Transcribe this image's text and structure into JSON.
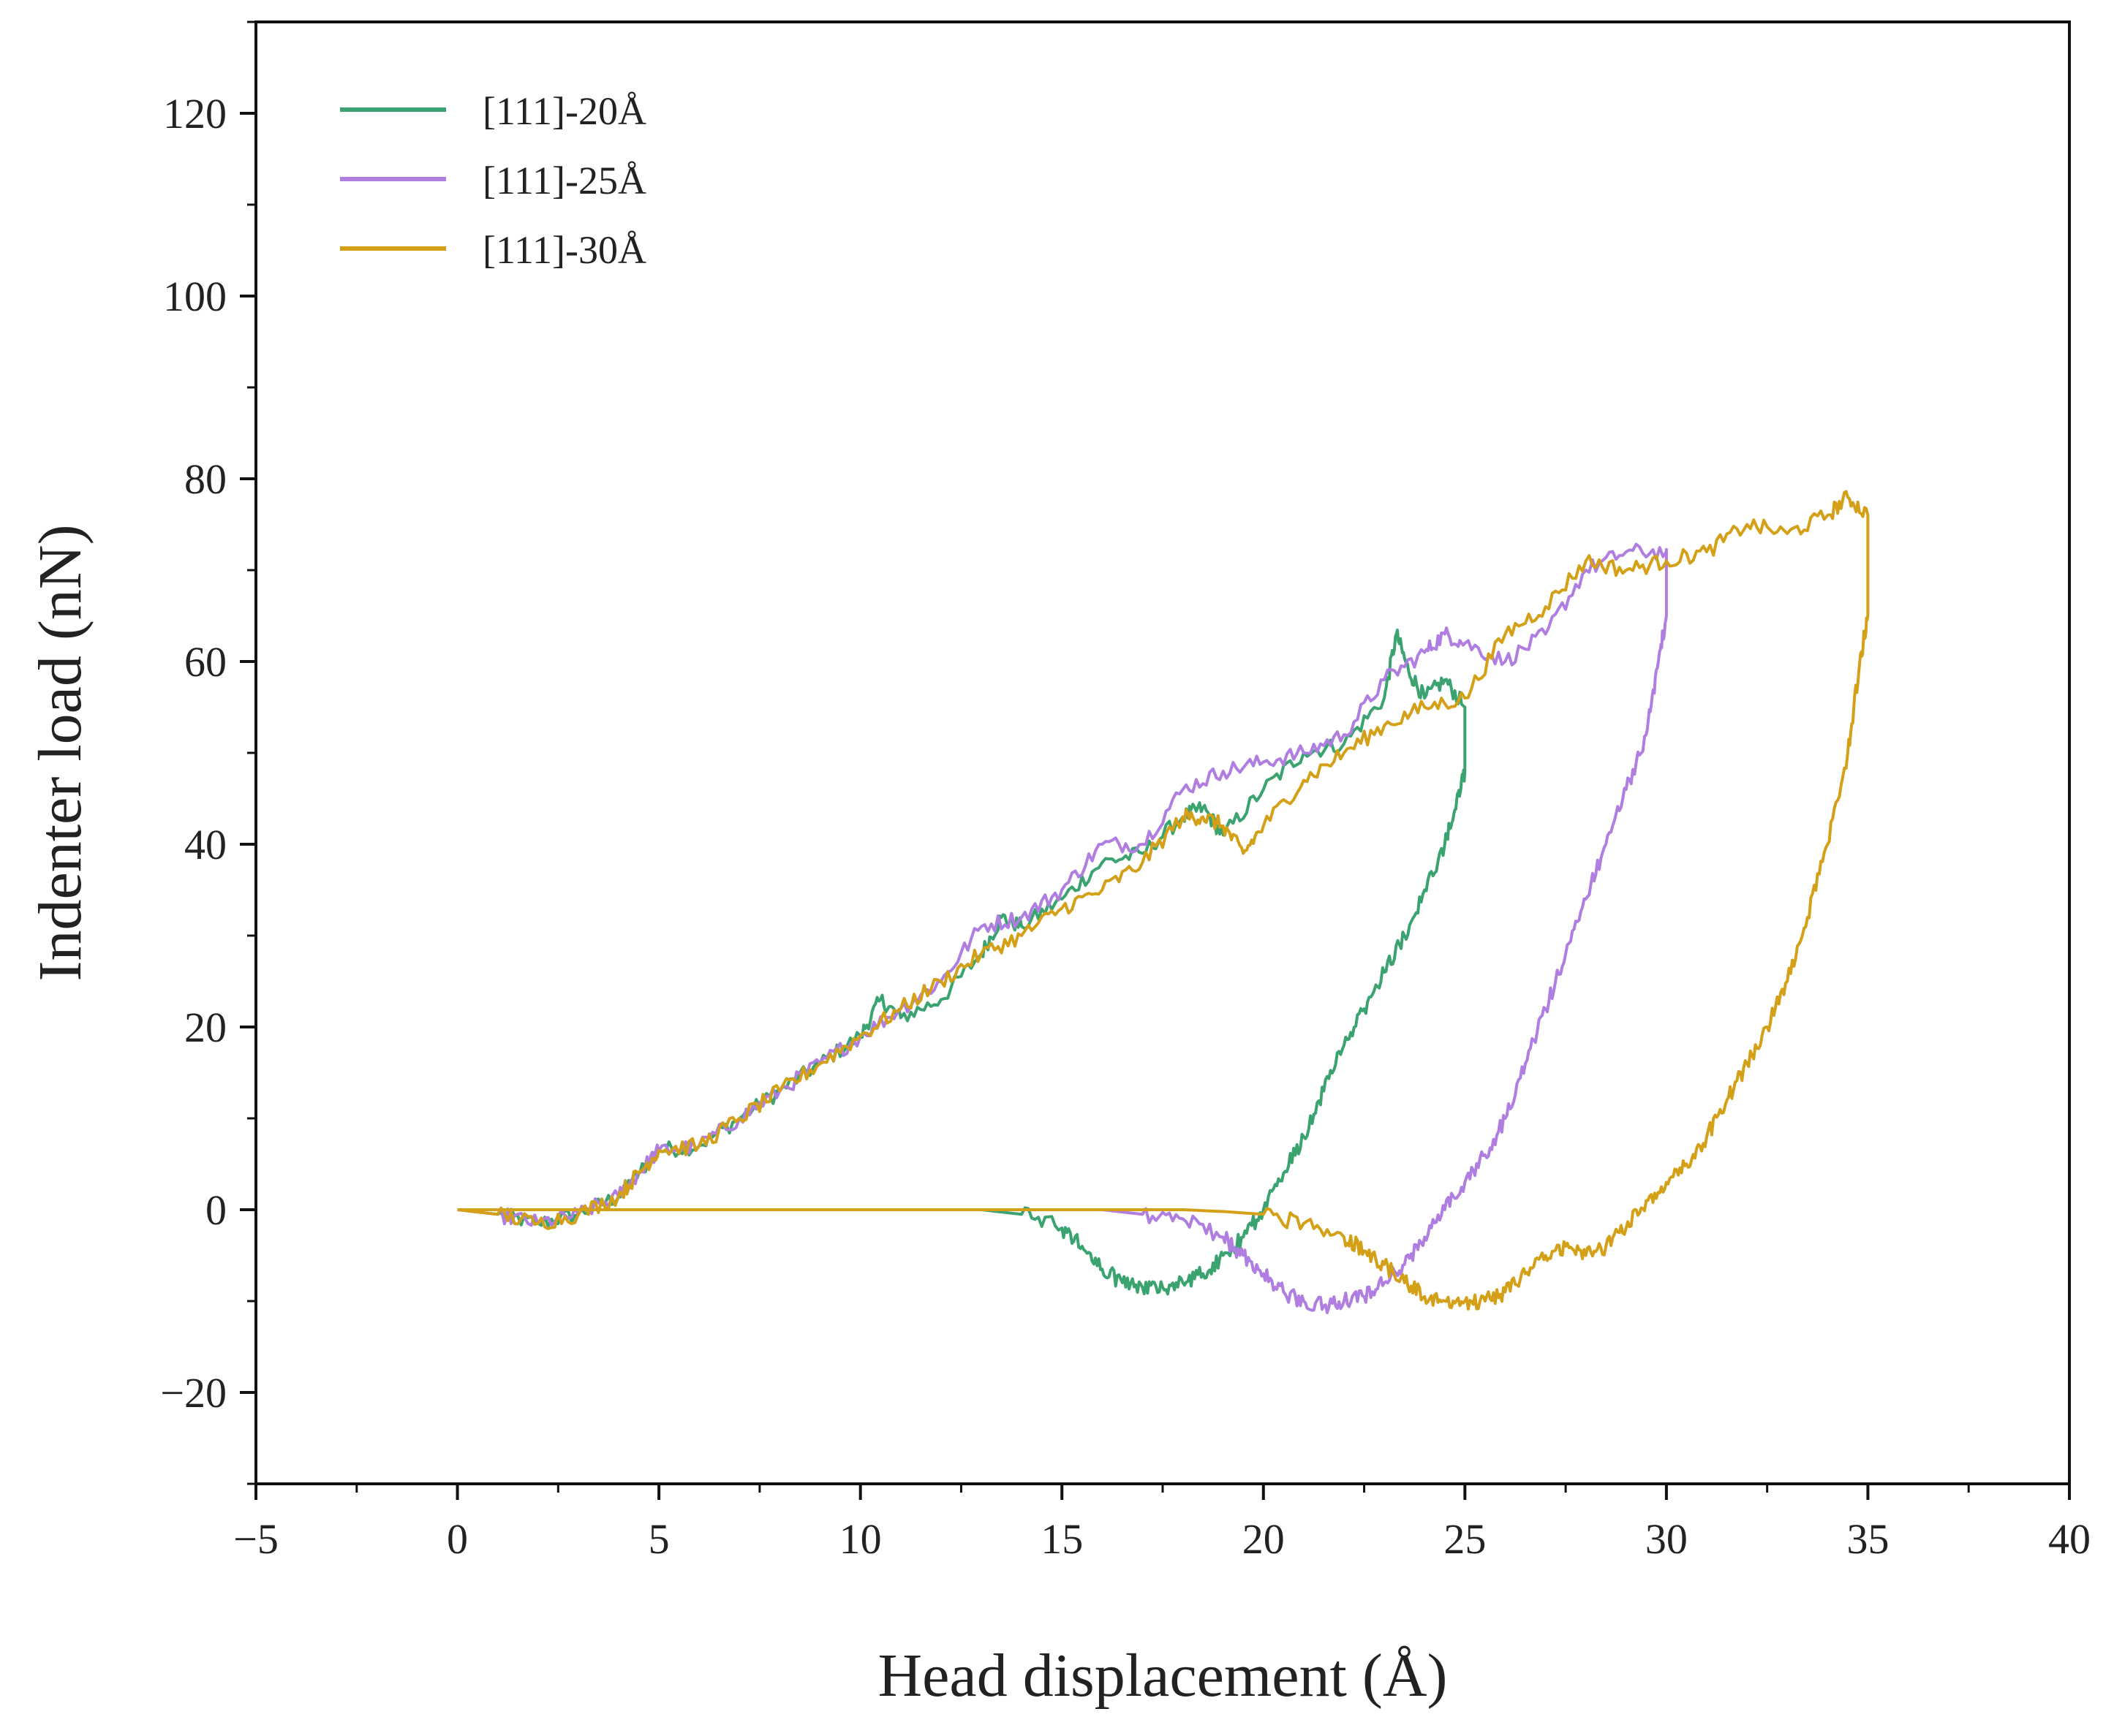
{
  "chart_data": {
    "type": "line",
    "title": "",
    "xlabel": "Head displacement (Å)",
    "ylabel": "Indenter load (nN)",
    "xlim": [
      -5,
      40
    ],
    "ylim": [
      -30,
      130
    ],
    "xticks": [
      -5,
      0,
      5,
      10,
      15,
      20,
      25,
      30,
      35,
      40
    ],
    "xtick_labels": [
      "−5",
      "0",
      "5",
      "10",
      "15",
      "20",
      "25",
      "30",
      "35",
      "40"
    ],
    "yticks": [
      -20,
      0,
      20,
      40,
      60,
      80,
      100,
      120
    ],
    "ytick_labels": [
      "−20",
      "0",
      "20",
      "40",
      "60",
      "80",
      "100",
      "120"
    ],
    "grid": false,
    "legend_position": "top-left",
    "series": [
      {
        "name": "[111]-20Å",
        "color": "#3aa36f",
        "x": [
          0,
          1,
          2,
          3,
          4,
          4.5,
          5,
          6,
          7,
          8,
          9,
          10,
          10.5,
          11,
          12,
          13,
          13.5,
          14,
          15,
          16,
          17,
          18,
          18.5,
          19,
          20,
          21,
          22,
          23,
          23.3,
          23.6,
          24,
          24.5,
          25,
          25,
          24.8,
          24.5,
          24,
          23.5,
          23,
          22.5,
          22,
          21.5,
          21,
          20.5,
          20,
          19.5,
          19,
          18.5,
          18,
          17.5,
          17,
          16.5,
          16,
          15.5,
          15,
          14,
          13,
          12,
          11,
          10.3
        ],
        "y": [
          0,
          -0.5,
          -1.5,
          -0.5,
          1.5,
          4,
          6.5,
          7,
          10,
          13,
          16,
          19,
          23,
          21,
          23,
          28,
          32,
          31,
          34,
          38,
          39,
          43,
          44,
          41,
          46,
          50,
          51,
          56,
          63,
          59,
          56,
          58,
          55,
          48,
          45,
          40,
          35,
          30,
          26,
          22,
          18,
          13,
          8,
          4,
          0,
          -3,
          -5,
          -7,
          -8,
          -8.5,
          -8.5,
          -8,
          -6.5,
          -4,
          -2,
          -0.5,
          0,
          0,
          0,
          0
        ]
      },
      {
        "name": "[111]-25Å",
        "color": "#b07ee0",
        "x": [
          0,
          1,
          2,
          3,
          4,
          4.5,
          5,
          6,
          7,
          8,
          9,
          10,
          11,
          12,
          13,
          14,
          15,
          16,
          17,
          18,
          19,
          20,
          21,
          22,
          23,
          24,
          24.5,
          25,
          26,
          27,
          28,
          29,
          30,
          30,
          29.8,
          29.5,
          29,
          28.5,
          28,
          27.5,
          27,
          26.5,
          26,
          25.5,
          25,
          24.5,
          24,
          23.5,
          23,
          22.5,
          22,
          21.5,
          21,
          20.5,
          20,
          19.5,
          19,
          18,
          17,
          16,
          15,
          14
        ],
        "y": [
          0,
          -0.5,
          -1.5,
          -0.5,
          1.5,
          4,
          6.5,
          7,
          10,
          13,
          16,
          19,
          22,
          25,
          31,
          32,
          35,
          40,
          40,
          46,
          48,
          49,
          50,
          52,
          58,
          61,
          63,
          62,
          60,
          63,
          70,
          72,
          72,
          65,
          60,
          52,
          46,
          40,
          34,
          28,
          22,
          16,
          10,
          6,
          3,
          0,
          -3,
          -6,
          -8,
          -9.5,
          -10,
          -10.5,
          -10,
          -9,
          -7,
          -5,
          -3,
          -1,
          -0.5,
          0,
          0,
          0
        ]
      },
      {
        "name": "[111]-30Å",
        "color": "#d4a017",
        "x": [
          0,
          1,
          2,
          3,
          4,
          4.5,
          5,
          6,
          7,
          8,
          9,
          10,
          11,
          12,
          13,
          14,
          15,
          16,
          17,
          18,
          18.5,
          19,
          19.5,
          20,
          21,
          22,
          23,
          24,
          25,
          26,
          27,
          28,
          29,
          30,
          31,
          32,
          33,
          34,
          34.5,
          35,
          35,
          34.8,
          34.5,
          34,
          33.5,
          33,
          32.5,
          32,
          31.5,
          31,
          30.5,
          30,
          29.5,
          29,
          28.5,
          28,
          27.5,
          27,
          26.5,
          26,
          25.5,
          25,
          24.5,
          24,
          23.5,
          23,
          22.5,
          22,
          21,
          20,
          19,
          18,
          17,
          16,
          15,
          14,
          12,
          10,
          8,
          6,
          4,
          2,
          0
        ],
        "y": [
          0,
          -0.5,
          -1.5,
          -0.5,
          1.5,
          4,
          6.5,
          7,
          10,
          13,
          16,
          19,
          22,
          25,
          28,
          30,
          33,
          35,
          38,
          43,
          43,
          42,
          39,
          42,
          47,
          50,
          53,
          55,
          56,
          63,
          66,
          71,
          70,
          71,
          72,
          75,
          74,
          76,
          78,
          76,
          65,
          60,
          50,
          40,
          32,
          25,
          20,
          16,
          12,
          8,
          5,
          3,
          1,
          -2,
          -4,
          -5,
          -4,
          -5,
          -7,
          -9,
          -10,
          -10,
          -10,
          -9.5,
          -8,
          -6,
          -4.5,
          -3,
          -1.5,
          -0.5,
          -0.2,
          0,
          0,
          0,
          0,
          0,
          0,
          0,
          0,
          0,
          0,
          0,
          0
        ]
      }
    ]
  }
}
